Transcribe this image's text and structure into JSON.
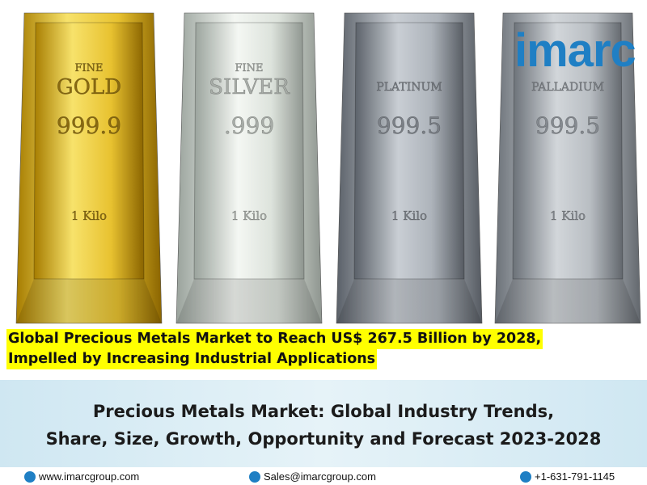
{
  "logo": "imarc",
  "bars": [
    {
      "lines": [
        "FINE",
        "GOLD"
      ],
      "purity": "999.9",
      "weight": "1 Kilo"
    },
    {
      "lines": [
        "FINE",
        "SILVER"
      ],
      "purity": ".999",
      "weight": "1 Kilo"
    },
    {
      "lines": [
        "PLATINUM"
      ],
      "purity": "999.5",
      "weight": "1 Kilo"
    },
    {
      "lines": [
        "PALLADIUM"
      ],
      "purity": "999.5",
      "weight": "1 Kilo"
    }
  ],
  "headline": [
    "Global Precious Metals Market to Reach US$ 267.5 Billion by 2028,",
    "Impelled by Increasing Industrial Applications"
  ],
  "banner": {
    "title": [
      "Precious Metals Market: Global Industry Trends,",
      "Share, Size, Growth, Opportunity and Forecast 2023-2028"
    ]
  },
  "footer": {
    "website": "www.imarcgroup.com",
    "email": "Sales@imarcgroup.com",
    "phone": "+1-631-791-1145"
  }
}
